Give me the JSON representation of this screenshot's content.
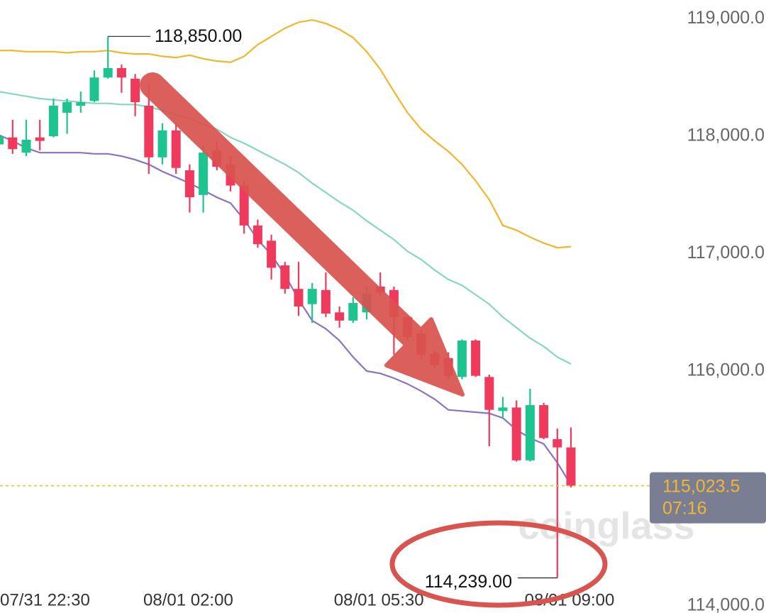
{
  "chart_data": {
    "type": "candlestick",
    "categories": [
      "07/31 22:30",
      null,
      null,
      null,
      null,
      null,
      null,
      null,
      null,
      null,
      null,
      null,
      null,
      null,
      "08/01 02:00",
      null,
      null,
      null,
      null,
      null,
      null,
      null,
      null,
      null,
      null,
      null,
      null,
      null,
      "08/01 05:30",
      null,
      null,
      null,
      null,
      null,
      null,
      null,
      null,
      null,
      null,
      null,
      null,
      null,
      "08/01 09:00"
    ],
    "open": [
      117930,
      117990,
      117860,
      117990,
      118000,
      118200,
      118260,
      118300,
      118500,
      118580,
      118490,
      118260,
      117820,
      118050,
      117710,
      117500,
      117880,
      117760,
      117580,
      117240,
      117110,
      116900,
      116700,
      116570,
      116690,
      116500,
      116430,
      116500,
      116720,
      116690,
      116460,
      116320,
      116150,
      116110,
      115950,
      116260,
      115950,
      115660,
      115690,
      115240,
      115710,
      115420,
      115350
    ],
    "high": [
      118170,
      118140,
      118140,
      118140,
      118320,
      118320,
      118380,
      118560,
      118850,
      118610,
      118530,
      118440,
      118110,
      118110,
      117760,
      117920,
      117960,
      117830,
      117620,
      117290,
      117160,
      116930,
      116930,
      116750,
      116840,
      116550,
      116630,
      116720,
      116840,
      116720,
      116470,
      116350,
      116170,
      116160,
      116270,
      116270,
      115970,
      115780,
      115750,
      115850,
      115730,
      115510,
      115520
    ],
    "low": [
      117860,
      117850,
      117830,
      117880,
      117990,
      118020,
      118200,
      118290,
      118490,
      118370,
      118170,
      117680,
      117760,
      117680,
      117350,
      117350,
      117710,
      117530,
      117170,
      117050,
      116780,
      116660,
      116470,
      116410,
      116460,
      116370,
      116410,
      116440,
      116640,
      116140,
      116260,
      116110,
      116020,
      115930,
      115930,
      115950,
      115360,
      115600,
      115230,
      115230,
      115420,
      114239,
      115010
    ],
    "close": [
      118000,
      117890,
      117970,
      117960,
      118260,
      118290,
      118290,
      118500,
      118580,
      118500,
      118290,
      117820,
      118050,
      117730,
      117480,
      117860,
      117740,
      117580,
      117240,
      117080,
      116880,
      116700,
      116550,
      116700,
      116490,
      116430,
      116580,
      116660,
      116670,
      116460,
      116290,
      116140,
      116050,
      115960,
      116260,
      115960,
      115670,
      115690,
      115240,
      115710,
      115430,
      115350,
      115023.5
    ],
    "up_color": "#1dc48f",
    "down_color": "#ef3a5d",
    "series": [
      {
        "color": "#f0b62c",
        "values": [
          118730,
          118730,
          118720,
          118720,
          118720,
          118710,
          118720,
          118720,
          118730,
          118710,
          118700,
          118700,
          118680,
          118670,
          118690,
          118660,
          118640,
          118630,
          118680,
          118780,
          118850,
          118920,
          118970,
          118990,
          118960,
          118910,
          118840,
          118720,
          118570,
          118380,
          118200,
          118060,
          117960,
          117870,
          117760,
          117620,
          117460,
          117240,
          117200,
          117140,
          117090,
          117050,
          117060
        ]
      },
      {
        "color": "#86d8bd",
        "values": [
          118380,
          118360,
          118340,
          118320,
          118310,
          118300,
          118290,
          118280,
          118280,
          118270,
          118270,
          118250,
          118220,
          118180,
          118150,
          118100,
          118060,
          117990,
          117940,
          117880,
          117820,
          117760,
          117690,
          117600,
          117520,
          117440,
          117370,
          117280,
          117200,
          117120,
          117020,
          116950,
          116860,
          116780,
          116730,
          116650,
          116570,
          116460,
          116370,
          116280,
          116210,
          116120,
          116060
        ]
      },
      {
        "color": "#8a72c6",
        "values": [
          118010,
          117960,
          117900,
          117860,
          117860,
          117860,
          117860,
          117850,
          117850,
          117830,
          117800,
          117760,
          117700,
          117650,
          117600,
          117540,
          117480,
          117430,
          117290,
          117120,
          116990,
          116820,
          116610,
          116430,
          116360,
          116260,
          116120,
          116000,
          115980,
          115940,
          115890,
          115830,
          115760,
          115670,
          115660,
          115650,
          115640,
          115600,
          115500,
          115430,
          115380,
          115220,
          115030
        ]
      }
    ],
    "ylim": [
      113940,
      119160
    ],
    "yticks": [
      {
        "value": 119000,
        "label": "119,000.0"
      },
      {
        "value": 118000,
        "label": "118,000.0"
      },
      {
        "value": 117000,
        "label": "117,000.0"
      },
      {
        "value": 116000,
        "label": "116,000.0"
      },
      {
        "value": 114000,
        "label": "114,000.0"
      }
    ],
    "high_marker": {
      "value": 118850,
      "label": "118,850.00"
    },
    "low_marker": {
      "value": 114239,
      "label": "114,239.00"
    },
    "current_price": {
      "value": 115023.5,
      "label": "115,023.5",
      "color": "#f2b632"
    },
    "countdown": "07:16",
    "watermark": "coinglass"
  }
}
